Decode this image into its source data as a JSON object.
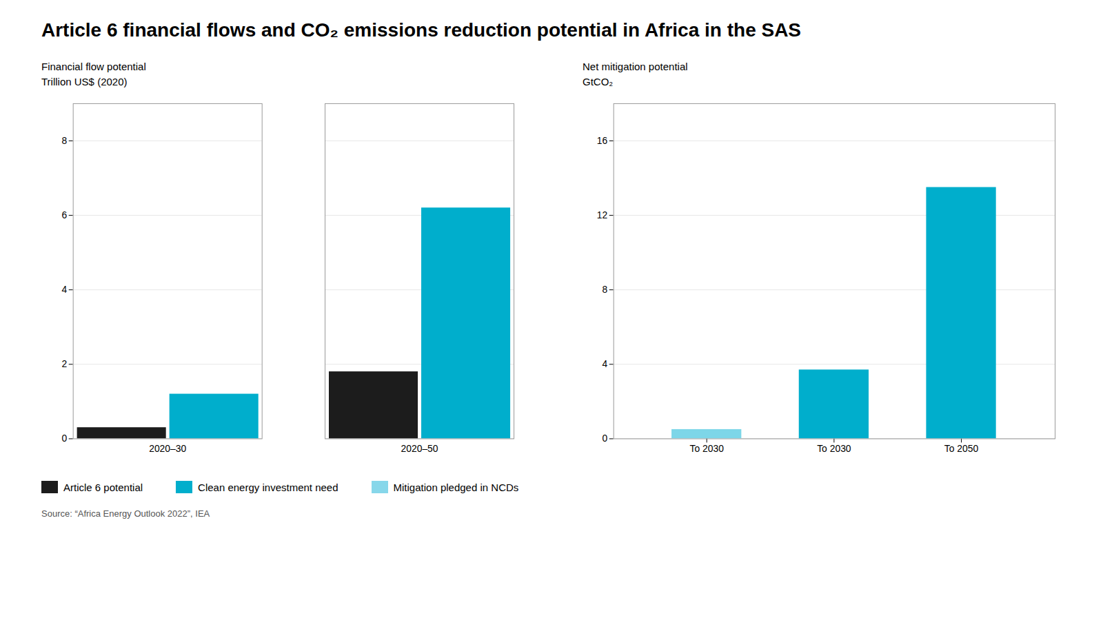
{
  "title": "Article 6 financial flows and CO₂ emissions reduction potential in Africa in the SAS",
  "annotations": [
    "Source: “Africa Energy Outlook 2022”, IEA"
  ],
  "chart_data": [
    {
      "type": "bar",
      "title": "Financial flow potential",
      "subtitle": "Trillion US$ (2020)",
      "categories": [
        "2020–30",
        "2020–50"
      ],
      "series": [
        {
          "name": "Article 6 potential",
          "color": "#1C1C1C",
          "values": [
            0.3,
            1.8
          ]
        },
        {
          "name": "Clean energy investment need",
          "color": "#00AECC",
          "values": [
            1.2,
            6.2
          ]
        }
      ],
      "ylim": [
        0,
        9
      ],
      "yticks": [
        0,
        2,
        4,
        6,
        8
      ],
      "grid": true
    },
    {
      "type": "bar",
      "title": "Net mitigation potential",
      "subtitle": "GtCO₂",
      "categories": [
        "To 2030",
        "To 2030",
        "To 2050"
      ],
      "values": [
        0.5,
        3.7,
        13.5
      ],
      "colors": [
        "#7DD6E8",
        "#00AECC",
        "#00AECC"
      ],
      "ylim": [
        0,
        18
      ],
      "yticks": [
        0,
        4,
        8,
        12,
        16
      ],
      "grid": true,
      "legend_entries": [
        {
          "name": "Mitigation pledged in NCDs",
          "color": "#87D7EA"
        }
      ]
    }
  ]
}
